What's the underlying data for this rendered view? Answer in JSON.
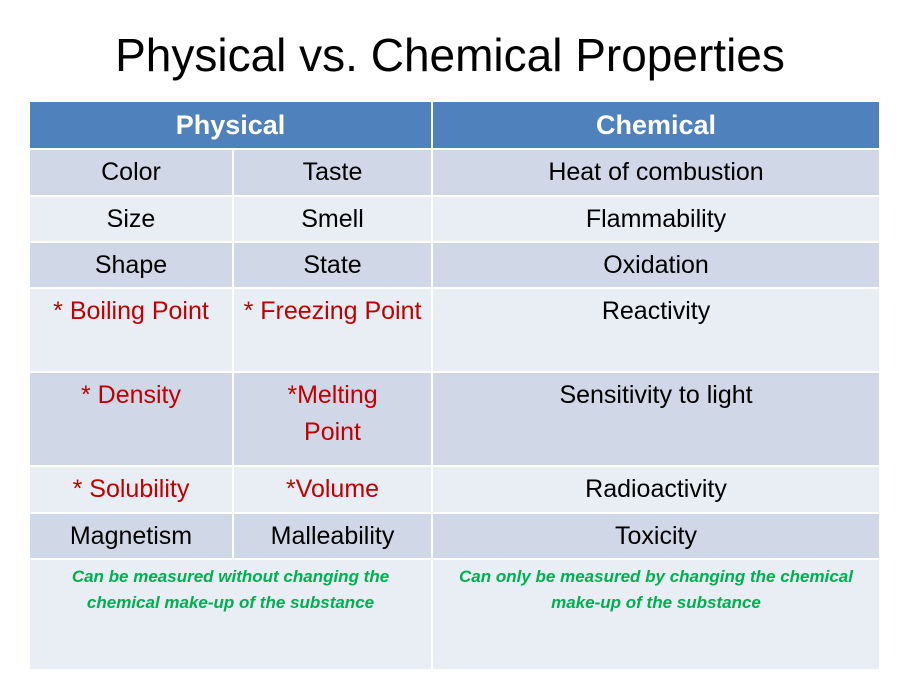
{
  "title": "Physical vs. Chemical Properties",
  "table": {
    "header": [
      "Physical",
      "Chemical"
    ],
    "rows": [
      [
        "Color",
        "Taste",
        "Heat of combustion"
      ],
      [
        "Size",
        "Smell",
        "Flammability"
      ],
      [
        "Shape",
        "State",
        "Oxidation"
      ],
      [
        "* Boiling Point",
        "* Freezing Point",
        "Reactivity"
      ],
      [
        "* Density",
        "*Melting Point",
        "Sensitivity to light"
      ],
      [
        "* Solubility",
        "*Volume",
        "Radioactivity"
      ],
      [
        "Magnetism",
        "Malleability",
        "Toxicity"
      ]
    ],
    "footer": [
      "Can be measured without changing the chemical make-up of the substance",
      "Can only be measured by changing the chemical make-up of the substance"
    ]
  }
}
